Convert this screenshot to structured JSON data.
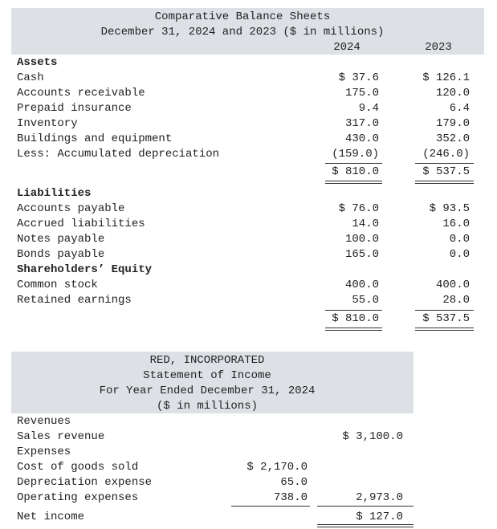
{
  "balance_sheet": {
    "title": "Comparative Balance Sheets",
    "subtitle": "December 31, 2024 and 2023 ($ in millions)",
    "columns": [
      "2024",
      "2023"
    ],
    "assets": {
      "heading": "Assets",
      "rows": [
        {
          "label": "Cash",
          "values": [
            "$ 37.6",
            "$ 126.1"
          ]
        },
        {
          "label": "Accounts receivable",
          "values": [
            "175.0",
            "120.0"
          ]
        },
        {
          "label": "Prepaid insurance",
          "values": [
            "9.4",
            "6.4"
          ]
        },
        {
          "label": "Inventory",
          "values": [
            "317.0",
            "179.0"
          ]
        },
        {
          "label": "Buildings and equipment",
          "values": [
            "430.0",
            "352.0"
          ]
        },
        {
          "label": "Less: Accumulated depreciation",
          "values": [
            "(159.0)",
            "(246.0)"
          ]
        }
      ],
      "total": [
        "$ 810.0",
        "$ 537.5"
      ]
    },
    "liabilities": {
      "heading": "Liabilities",
      "rows": [
        {
          "label": "Accounts payable",
          "values": [
            "$ 76.0",
            "$ 93.5"
          ]
        },
        {
          "label": "Accrued liabilities",
          "values": [
            "14.0",
            "16.0"
          ]
        },
        {
          "label": "Notes payable",
          "values": [
            "100.0",
            "0.0"
          ]
        },
        {
          "label": "Bonds payable",
          "values": [
            "165.0",
            "0.0"
          ]
        }
      ]
    },
    "equity": {
      "heading": "Shareholders’ Equity",
      "rows": [
        {
          "label": "Common stock",
          "values": [
            "400.0",
            "400.0"
          ]
        },
        {
          "label": "Retained earnings",
          "values": [
            "55.0",
            "28.0"
          ]
        }
      ],
      "total": [
        "$ 810.0",
        "$ 537.5"
      ]
    }
  },
  "income_statement": {
    "company": "RED, INCORPORATED",
    "title": "Statement of Income",
    "period": "For Year Ended December 31, 2024",
    "units": "($ in millions)",
    "rows": [
      {
        "label": "Revenues"
      },
      {
        "label": "Sales revenue",
        "col2": "$ 3,100.0"
      },
      {
        "label": "Expenses"
      },
      {
        "label": "Cost of goods sold",
        "col1": "$ 2,170.0"
      },
      {
        "label": "Depreciation expense",
        "col1": "65.0"
      },
      {
        "label": "Operating expenses",
        "col1": "738.0",
        "col2": "2,973.0"
      },
      {
        "label": "Net income",
        "col2": "$ 127.0"
      }
    ]
  }
}
